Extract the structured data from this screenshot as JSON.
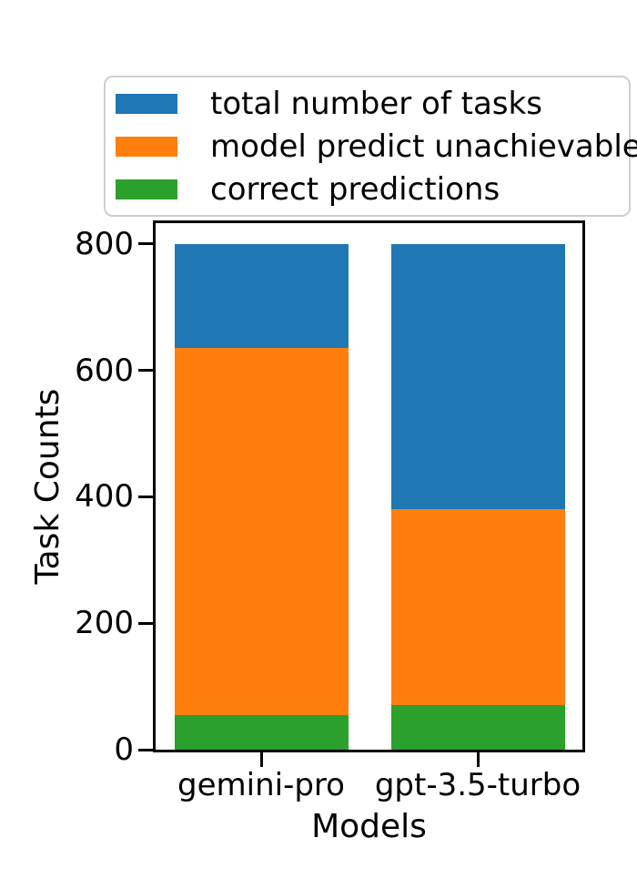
{
  "figure": {
    "background": "#ffffff",
    "text_color": "#000000"
  },
  "chart_data": {
    "type": "bar",
    "mode": "overlaid",
    "title": "",
    "xlabel": "Models",
    "ylabel": "Task Counts",
    "categories": [
      "gemini-pro",
      "gpt-3.5-turbo"
    ],
    "series": [
      {
        "name": "total number of tasks",
        "color": "#1f77b4",
        "values": [
          800,
          800
        ]
      },
      {
        "name": "model predict unachievable",
        "color": "#ff7f0e",
        "values": [
          635,
          380
        ]
      },
      {
        "name": "correct predictions",
        "color": "#2ca02c",
        "values": [
          55,
          70
        ]
      }
    ],
    "ylim": [
      0,
      833
    ],
    "yticks": [
      0,
      200,
      400,
      600,
      800
    ],
    "grid": false,
    "legend_position": "upper left",
    "legend_border_color": "#cfcfcf",
    "spine_color": "#000000"
  }
}
